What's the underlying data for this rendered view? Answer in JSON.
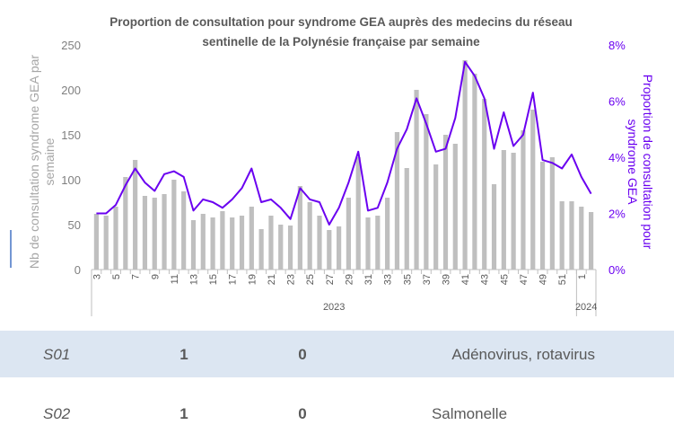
{
  "chart_data": {
    "type": "bar_line",
    "title": "Proportion de consultation pour syndrome GEA auprès des medecins du réseau sentinelle de la Polynésie française par semaine",
    "y_label": "Nb de consultation syndrome GEA par semaine",
    "y2_label": "Proportion de consultation pour syndrome GEA",
    "categories": [
      "3",
      null,
      "5",
      null,
      "7",
      null,
      "9",
      null,
      "11",
      null,
      "13",
      null,
      "15",
      null,
      "17",
      null,
      "19",
      null,
      "21",
      null,
      "23",
      null,
      "25",
      null,
      "27",
      null,
      "29",
      null,
      "31",
      null,
      "33",
      null,
      "35",
      null,
      "37",
      null,
      "39",
      null,
      "41",
      null,
      "43",
      null,
      "45",
      null,
      "47",
      null,
      "49",
      null,
      "51",
      null,
      "1",
      null
    ],
    "x_groups": [
      "2023",
      "2024"
    ],
    "series": [
      {
        "name": "Nb de consultation syndrome GEA",
        "type": "bar",
        "color": "#bfbfbf",
        "values": [
          62,
          60,
          70,
          103,
          122,
          82,
          80,
          84,
          100,
          87,
          55,
          62,
          58,
          65,
          58,
          60,
          70,
          45,
          60,
          50,
          49,
          93,
          75,
          60,
          44,
          48,
          80,
          125,
          58,
          60,
          80,
          153,
          113,
          200,
          173,
          117,
          150,
          140,
          233,
          218,
          190,
          95,
          133,
          130,
          155,
          178,
          120,
          125,
          76,
          76,
          70,
          64
        ]
      },
      {
        "name": "Proportion de consultation pour syndrome GEA",
        "type": "line",
        "axis": "y2",
        "color": "#6a00f0",
        "values": [
          2.0,
          2.0,
          2.3,
          3.0,
          3.6,
          3.1,
          2.8,
          3.4,
          3.5,
          3.3,
          2.1,
          2.5,
          2.4,
          2.2,
          2.5,
          2.9,
          3.6,
          2.4,
          2.5,
          2.2,
          1.8,
          2.9,
          2.5,
          2.4,
          1.6,
          2.2,
          3.1,
          4.2,
          2.1,
          2.2,
          3.1,
          4.3,
          5.0,
          6.1,
          5.2,
          4.2,
          4.3,
          5.4,
          7.4,
          6.9,
          6.1,
          4.3,
          5.6,
          4.4,
          4.8,
          6.3,
          3.9,
          3.8,
          3.6,
          4.1,
          3.3,
          2.7
        ]
      }
    ],
    "ylim": [
      0,
      250
    ],
    "yticks": [
      0,
      50,
      100,
      150,
      200,
      250
    ],
    "y2lim": [
      0,
      8
    ],
    "y2ticks": [
      {
        "value": 0,
        "label": "0%"
      },
      {
        "value": 2,
        "label": "2%"
      },
      {
        "value": 4,
        "label": "4%"
      },
      {
        "value": 6,
        "label": "6%"
      },
      {
        "value": 8,
        "label": "8%"
      }
    ],
    "grid": false
  },
  "table": {
    "rows": [
      [
        "S01",
        1,
        0,
        "Adénovirus, rotavirus"
      ],
      [
        "S02",
        1,
        0,
        "Salmonelle"
      ]
    ]
  }
}
